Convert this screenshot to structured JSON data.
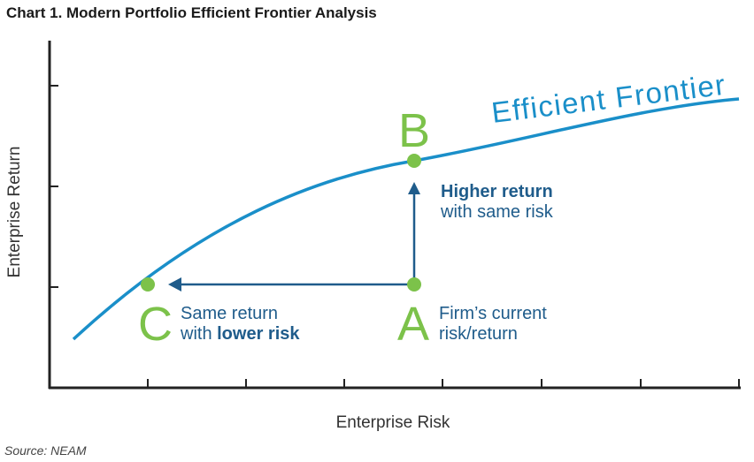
{
  "chart_data": {
    "type": "line",
    "title": "Chart 1. Modern Portfolio Efficient Frontier Analysis",
    "xlabel": "Enterprise Risk",
    "ylabel": "Enterprise Return",
    "source": "Source: NEAM",
    "series": [
      {
        "name": "Efficient Frontier",
        "color": "#1a8fc9"
      }
    ],
    "points": [
      {
        "label": "A",
        "color": "#7cc24a",
        "note": [
          "Firm’s current",
          "risk/return"
        ]
      },
      {
        "label": "B",
        "color": "#7cc24a",
        "note_bold": "Higher return",
        "note": "with same risk"
      },
      {
        "label": "C",
        "color": "#7cc24a",
        "note_line1": "Same return",
        "note_line2_prefix": "with ",
        "note_line2_bold": "lower risk"
      }
    ],
    "arrows": [
      {
        "from": "A",
        "to": "B",
        "color": "#1f5c8b"
      },
      {
        "from": "A",
        "to": "C",
        "color": "#1f5c8b"
      }
    ],
    "grid": false,
    "legend": "none"
  }
}
